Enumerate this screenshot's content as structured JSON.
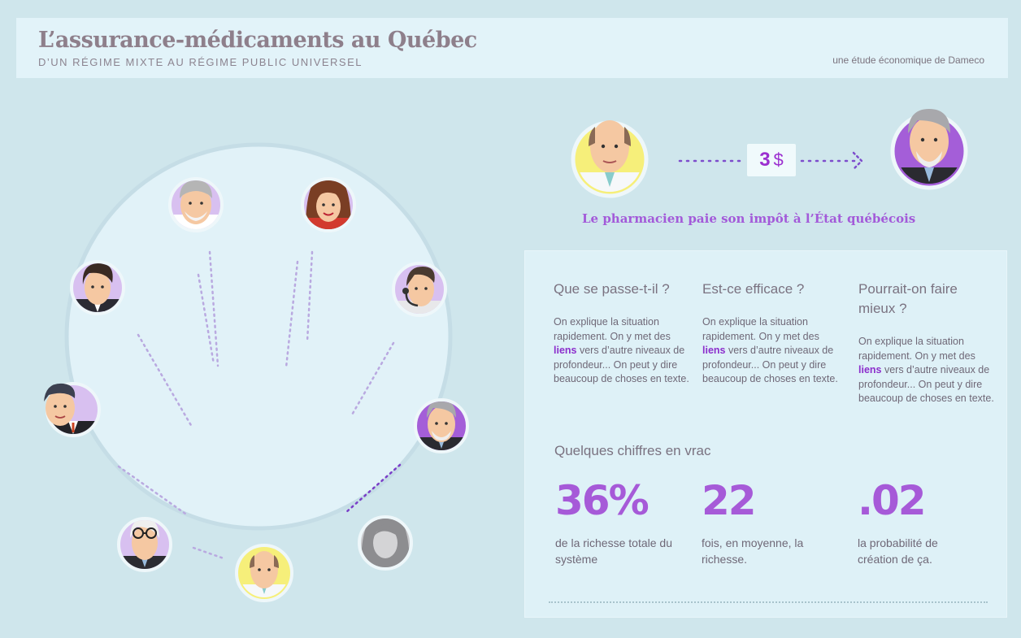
{
  "header": {
    "title": "L’assurance-médicaments au Québec",
    "subtitle": "D’UN RÉGIME MIXTE AU RÉGIME PUBLIC UNIVERSEL",
    "credit": "une étude économique de Dameco"
  },
  "transaction": {
    "amount": "3",
    "currency": "$",
    "caption": "Le pharmacien paie son impôt à l’État québécois"
  },
  "columns": [
    {
      "title": "Que se passe-t-il ?",
      "text_before": "On explique la situation rapidement. On y met des ",
      "link": "liens",
      "text_after": " vers d’autre niveaux de profondeur... On peut y dire beaucoup de choses en texte."
    },
    {
      "title": "Est-ce efficace ?",
      "text_before": "On explique la situation rapidement. On y met des ",
      "link": "liens",
      "text_after": " vers d’autre niveaux de profondeur... On peut y dire beaucoup de choses en texte."
    },
    {
      "title": "Pourrait-on faire mieux ?",
      "text_before": "On explique la situation rapidement. On y met des ",
      "link": "liens",
      "text_after": " vers d’autre niveaux de profondeur... On peut y dire beaucoup de choses en texte."
    }
  ],
  "stats_section": {
    "title": "Quelques chiffres en vrac",
    "items": [
      {
        "value": "36%",
        "label": "de la richesse totale du système"
      },
      {
        "value": "22",
        "label": "fois, en moyenne, la richesse."
      },
      {
        "value": ".02",
        "label": "la probabilité de création de  ça."
      }
    ]
  },
  "colors": {
    "background": "#cfe6ec",
    "accent_purple": "#a65ad8",
    "title": "#8e7f8b",
    "yellow": "#f6ef7a"
  },
  "icons": [
    "character-old-bearded-man",
    "character-woman-brunette",
    "character-headset-agent",
    "character-bald-pharmacist",
    "character-glasses-man",
    "character-politician"
  ]
}
